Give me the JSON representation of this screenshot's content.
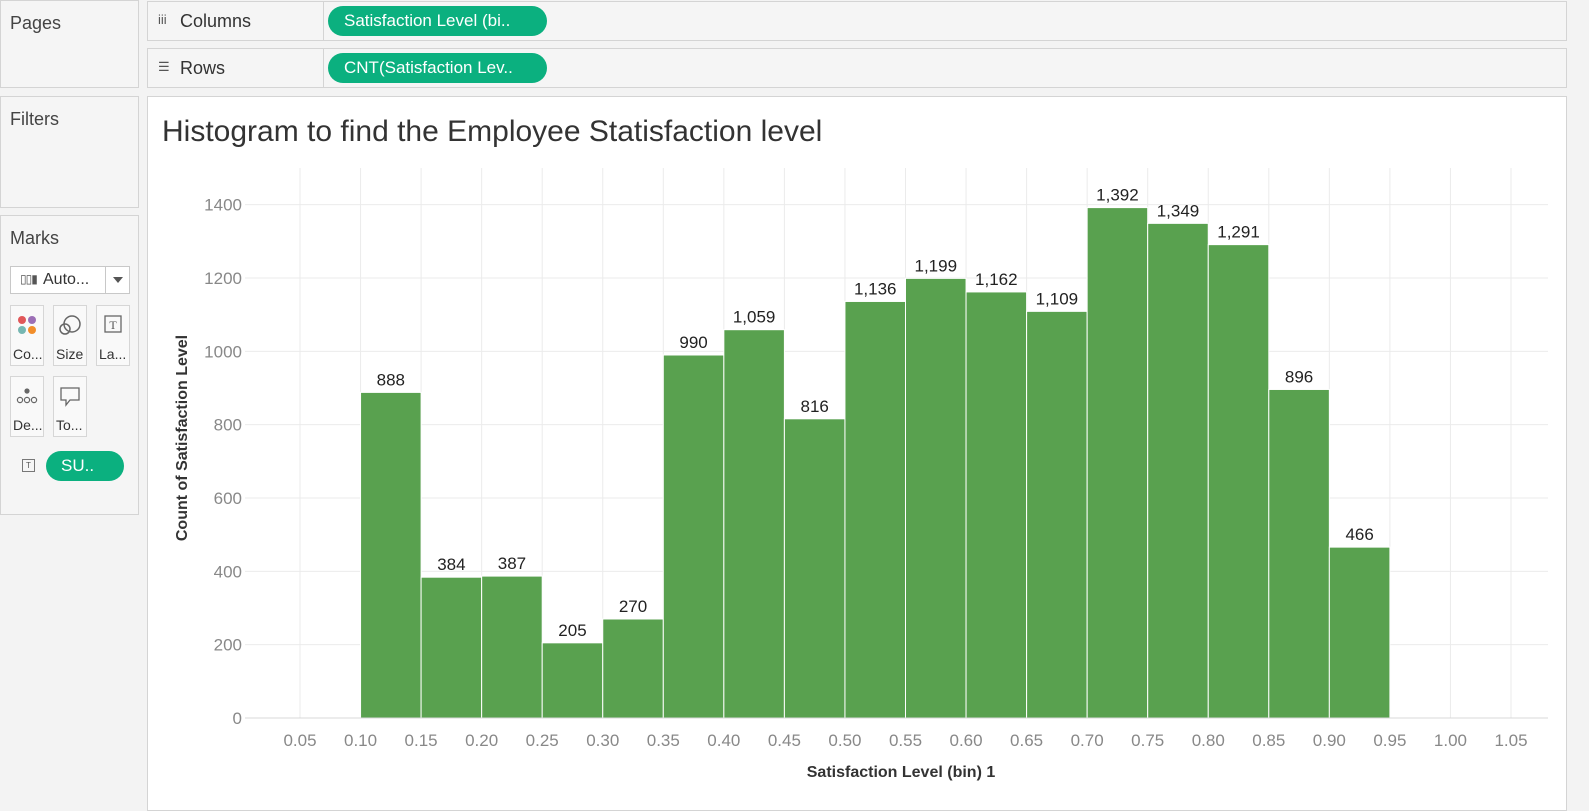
{
  "pages": {
    "title": "Pages"
  },
  "filters": {
    "title": "Filters"
  },
  "marks": {
    "title": "Marks",
    "mark_type": "Auto...",
    "buttons": [
      "Co...",
      "Size",
      "La...",
      "De...",
      "To..."
    ],
    "pill": "SU.."
  },
  "columns": {
    "label": "Columns",
    "pill": "Satisfaction Level (bi.."
  },
  "rows": {
    "label": "Rows",
    "pill": "CNT(Satisfaction Lev.."
  },
  "colors": {
    "pill": "#0bb07f",
    "bar": "#59a14f",
    "grid": "#ebebeb"
  },
  "chart_data": {
    "type": "bar",
    "title": "Histogram to find the Employee Statisfaction level",
    "xlabel": "Satisfaction Level (bin) 1",
    "ylabel": "Count of Satisfaction Level",
    "x_ticks": [
      "0.05",
      "0.10",
      "0.15",
      "0.20",
      "0.25",
      "0.30",
      "0.35",
      "0.40",
      "0.45",
      "0.50",
      "0.55",
      "0.60",
      "0.65",
      "0.70",
      "0.75",
      "0.80",
      "0.85",
      "0.90",
      "0.95",
      "1.00",
      "1.05"
    ],
    "y_ticks": [
      0,
      200,
      400,
      600,
      800,
      1000,
      1200,
      1400
    ],
    "ylim": [
      0,
      1500
    ],
    "bins": [
      {
        "start": 0.1,
        "value": 888,
        "label": "888"
      },
      {
        "start": 0.15,
        "value": 384,
        "label": "384"
      },
      {
        "start": 0.2,
        "value": 387,
        "label": "387"
      },
      {
        "start": 0.25,
        "value": 205,
        "label": "205"
      },
      {
        "start": 0.3,
        "value": 270,
        "label": "270"
      },
      {
        "start": 0.35,
        "value": 990,
        "label": "990"
      },
      {
        "start": 0.4,
        "value": 1059,
        "label": "1,059"
      },
      {
        "start": 0.45,
        "value": 816,
        "label": "816"
      },
      {
        "start": 0.5,
        "value": 1136,
        "label": "1,136"
      },
      {
        "start": 0.55,
        "value": 1199,
        "label": "1,199"
      },
      {
        "start": 0.6,
        "value": 1162,
        "label": "1,162"
      },
      {
        "start": 0.65,
        "value": 1109,
        "label": "1,109"
      },
      {
        "start": 0.7,
        "value": 1392,
        "label": "1,392"
      },
      {
        "start": 0.75,
        "value": 1349,
        "label": "1,349"
      },
      {
        "start": 0.8,
        "value": 1291,
        "label": "1,291"
      },
      {
        "start": 0.85,
        "value": 896,
        "label": "896"
      },
      {
        "start": 0.9,
        "value": 466,
        "label": "466"
      }
    ],
    "grid": true,
    "legend": "none"
  }
}
